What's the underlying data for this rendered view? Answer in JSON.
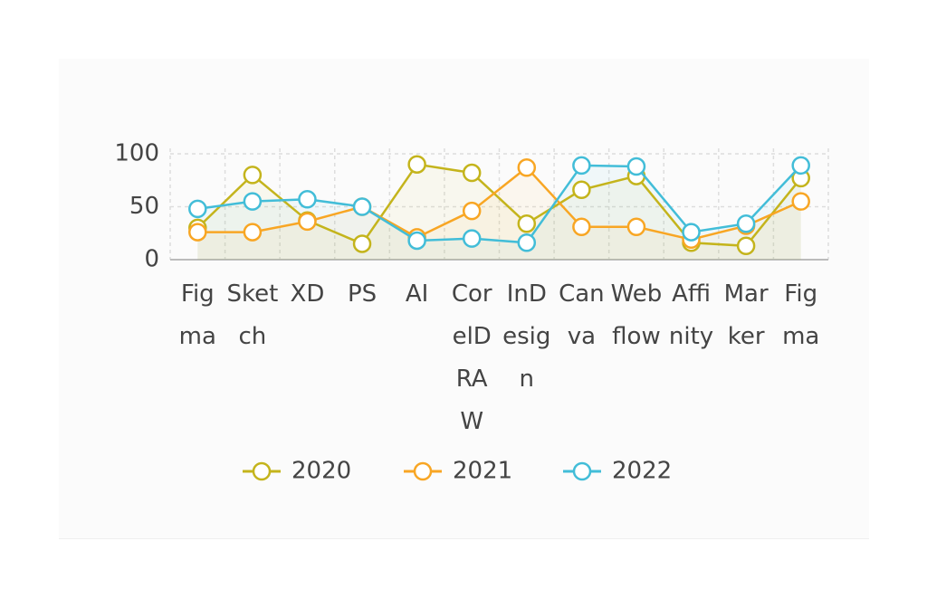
{
  "chart_data": {
    "type": "line",
    "categories": [
      "Figma",
      "Sketch",
      "XD",
      "PS",
      "AI",
      "CorelDRAW",
      "InDesign",
      "Canva",
      "Webflow",
      "Affinity",
      "Marker",
      "Figma"
    ],
    "series": [
      {
        "name": "2020",
        "color": "#c4b41c",
        "values": [
          30,
          80,
          37,
          15,
          90,
          82,
          34,
          66,
          79,
          16,
          13,
          77
        ]
      },
      {
        "name": "2021",
        "color": "#f8a624",
        "values": [
          26,
          26,
          36,
          50,
          21,
          46,
          87,
          31,
          31,
          19,
          32,
          55
        ]
      },
      {
        "name": "2022",
        "color": "#42bdd8",
        "values": [
          48,
          55,
          57,
          50,
          18,
          20,
          16,
          89,
          88,
          26,
          34,
          89
        ]
      }
    ],
    "ylim": [
      0,
      100
    ],
    "yticks": [
      0,
      50,
      100
    ],
    "grid": true,
    "legend": "bottom"
  }
}
